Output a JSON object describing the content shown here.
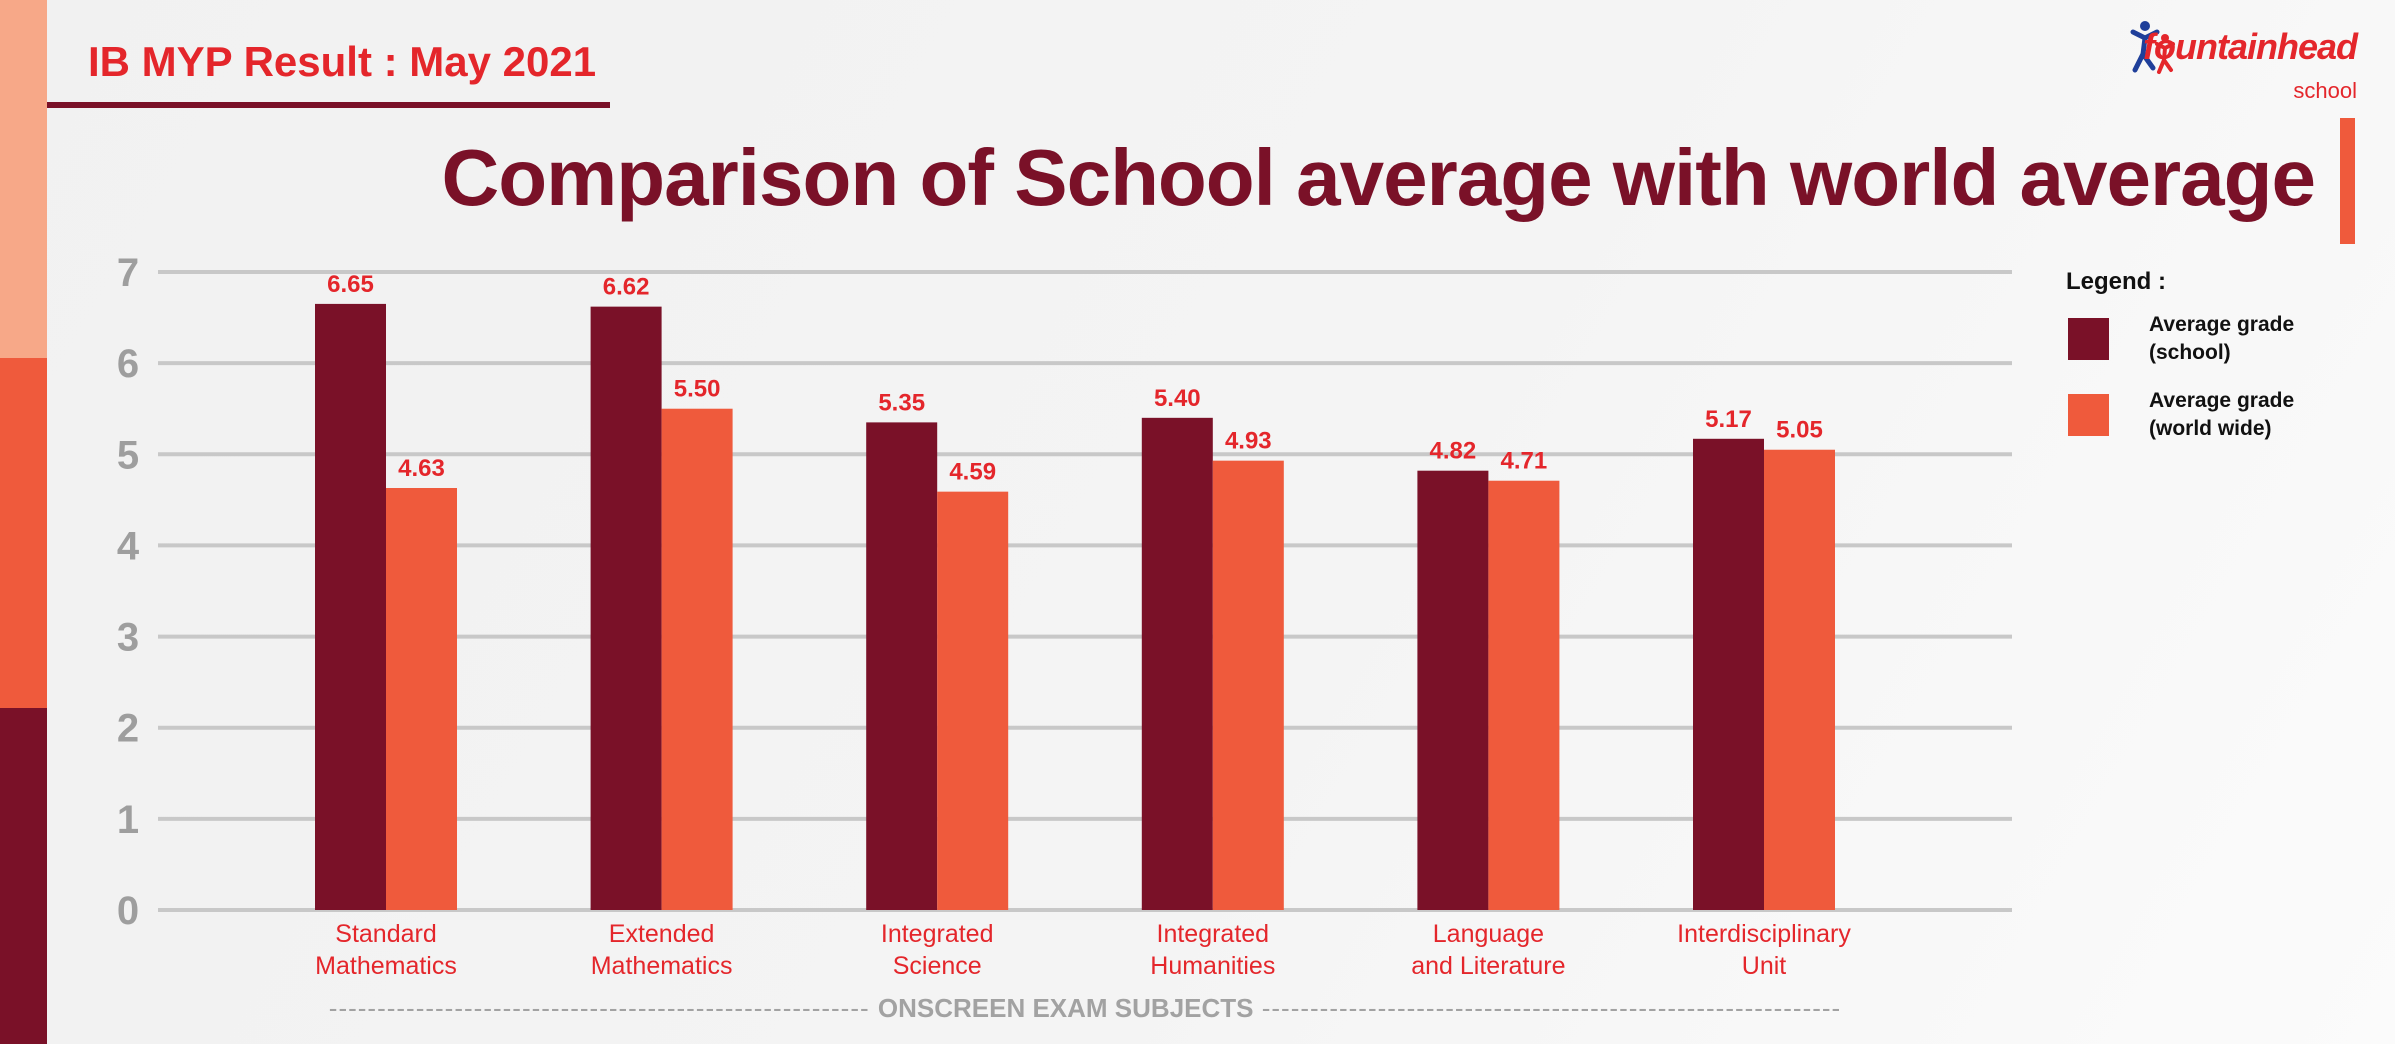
{
  "header": {
    "result_label": "IB MYP Result : May 2021",
    "title": "Comparison of School average with world average"
  },
  "logo": {
    "name": "fountainhead",
    "sub": "school"
  },
  "legend": {
    "title": "Legend :",
    "items": [
      {
        "line1": "Average grade",
        "line2": "(school)"
      },
      {
        "line1": "Average grade",
        "line2": "(world wide)"
      }
    ]
  },
  "footer": {
    "caption": "ONSCREEN EXAM SUBJECTS"
  },
  "colors": {
    "school": "#7a1128",
    "world": "#ef5a3c",
    "label": "#e4262b",
    "grid": "#c8c8c8",
    "tick": "#9e9e9e"
  },
  "chart_data": {
    "type": "bar",
    "title": "Comparison of School average with world average",
    "xlabel": "ONSCREEN EXAM SUBJECTS",
    "ylabel": "",
    "ylim": [
      0,
      7
    ],
    "yticks": [
      "0",
      "1",
      "2",
      "3",
      "4",
      "5",
      "6",
      "7"
    ],
    "grid": true,
    "legend_position": "right",
    "categories": [
      [
        "Standard",
        "Mathematics"
      ],
      [
        "Extended",
        "Mathematics"
      ],
      [
        "Integrated",
        "Science"
      ],
      [
        "Integrated",
        "Humanities"
      ],
      [
        "Language",
        "and Literature"
      ],
      [
        "Interdisciplinary",
        "Unit"
      ]
    ],
    "series": [
      {
        "name": "Average grade (school)",
        "values": [
          6.65,
          6.62,
          5.35,
          5.4,
          4.82,
          5.17
        ],
        "labels": [
          "6.65",
          "6.62",
          "5.35",
          "5.40",
          "4.82",
          "5.17"
        ]
      },
      {
        "name": "Average grade (world wide)",
        "values": [
          4.63,
          5.5,
          4.59,
          4.93,
          4.71,
          5.05
        ],
        "labels": [
          "4.63",
          "5.50",
          "4.59",
          "4.93",
          "4.71",
          "5.05"
        ]
      }
    ]
  }
}
